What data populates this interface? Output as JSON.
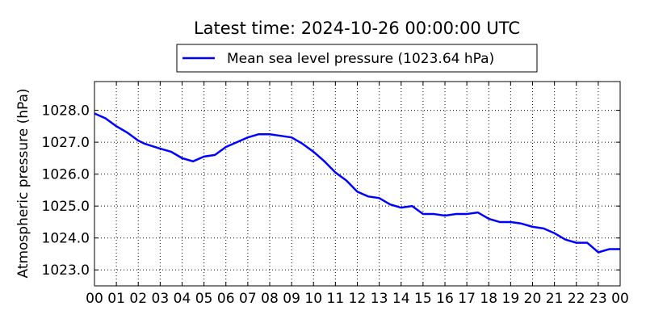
{
  "chart_data": {
    "type": "line",
    "title": "Latest time: 2024-10-26 00:00:00 UTC",
    "xlabel": "",
    "ylabel": "Atmospheric pressure (hPa)",
    "xlim": [
      0,
      24
    ],
    "ylim": [
      1022.5,
      1028.9
    ],
    "grid": true,
    "legend_position": "top-center",
    "x_tick_labels": [
      "00",
      "01",
      "02",
      "03",
      "04",
      "05",
      "06",
      "07",
      "08",
      "09",
      "10",
      "11",
      "12",
      "13",
      "14",
      "15",
      "16",
      "17",
      "18",
      "19",
      "20",
      "21",
      "22",
      "23",
      "00"
    ],
    "y_ticks": [
      1023.0,
      1024.0,
      1025.0,
      1026.0,
      1027.0,
      1028.0
    ],
    "y_tick_labels": [
      "1023.0",
      "1024.0",
      "1025.0",
      "1026.0",
      "1027.0",
      "1028.0"
    ],
    "series": [
      {
        "name": "Mean sea level pressure (1023.64 hPa)",
        "color": "#0000ff",
        "x": [
          0,
          0.5,
          1,
          1.5,
          2,
          2.3,
          3,
          3.5,
          4,
          4.5,
          5,
          5.5,
          6,
          6.5,
          7,
          7.5,
          8,
          8.5,
          9,
          9.5,
          10,
          10.5,
          11,
          11.5,
          12,
          12.5,
          13,
          13.5,
          14,
          14.5,
          15,
          15.5,
          16,
          16.5,
          17,
          17.5,
          18,
          18.5,
          19,
          19.5,
          20,
          20.5,
          21,
          21.5,
          22,
          22.5,
          23,
          23.5,
          24
        ],
        "y": [
          1027.9,
          1027.75,
          1027.5,
          1027.3,
          1027.05,
          1026.95,
          1026.8,
          1026.7,
          1026.5,
          1026.4,
          1026.55,
          1026.6,
          1026.85,
          1027.0,
          1027.15,
          1027.25,
          1027.25,
          1027.2,
          1027.15,
          1026.95,
          1026.7,
          1026.4,
          1026.05,
          1025.8,
          1025.45,
          1025.3,
          1025.25,
          1025.05,
          1024.95,
          1025.0,
          1024.75,
          1024.75,
          1024.7,
          1024.75,
          1024.75,
          1024.8,
          1024.6,
          1024.5,
          1024.5,
          1024.45,
          1024.35,
          1024.3,
          1024.15,
          1023.95,
          1023.85,
          1023.85,
          1023.55,
          1023.65,
          1023.65
        ]
      }
    ]
  }
}
